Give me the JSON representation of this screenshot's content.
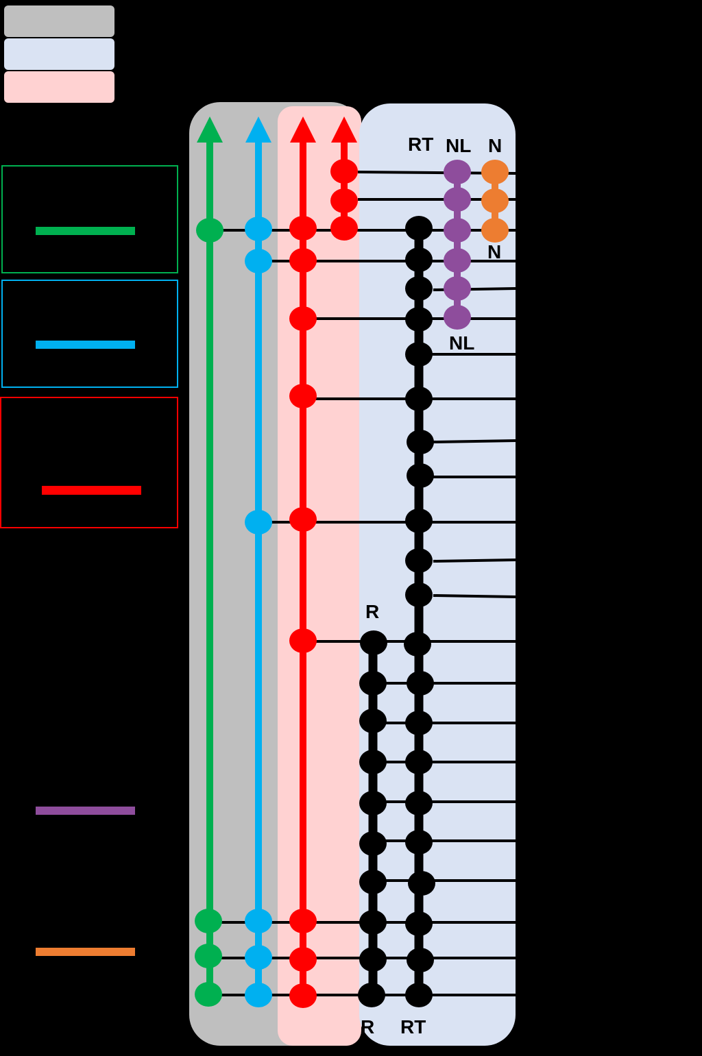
{
  "labels": {
    "rt_top": "RT",
    "nl_top": "NL",
    "n_top": "N",
    "n_mid": "N",
    "nl_mid": "NL",
    "r_mid": "R",
    "r_bottom": "R",
    "rt_bottom": "RT"
  },
  "colors": {
    "background": "#000000",
    "panel_gray": "#BFBFBF",
    "panel_blue": "#DAE3F3",
    "panel_pink": "#FFD2D2",
    "green": "#00B050",
    "blue": "#00B0F0",
    "red": "#FF0000",
    "black": "#000000",
    "purple": "#8E4D9C",
    "orange": "#ED7D31"
  }
}
